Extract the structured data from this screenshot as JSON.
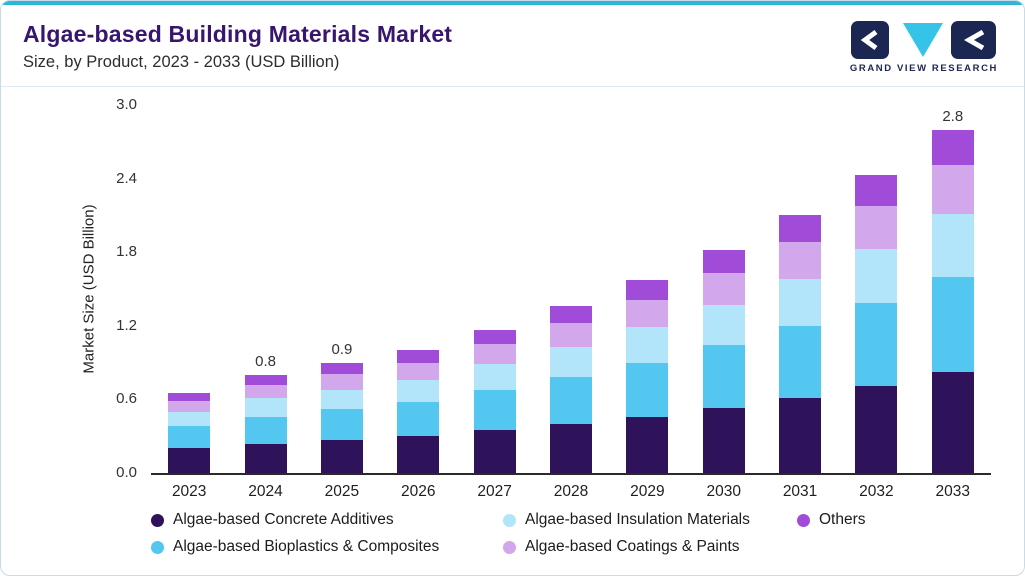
{
  "header": {
    "title": "Algae-based Building Materials Market",
    "subtitle": "Size, by Product, 2023 - 2033 (USD Billion)",
    "brand": "GRAND VIEW RESEARCH"
  },
  "colors": {
    "accent_teal": "#2cb6d9",
    "title_purple": "#38156e",
    "brand_navy": "#1b2653",
    "brand_cyan": "#35c4e8",
    "axis_text": "#333333",
    "baseline": "#2a2a2a"
  },
  "chart_data": {
    "type": "bar",
    "stacked": true,
    "title": "Algae-based Building Materials Market Size, by Product, 2023 - 2033 (USD Billion)",
    "xlabel": "",
    "ylabel": "Market Size (USD Billion)",
    "ylim": [
      0,
      3.0
    ],
    "ytick_labels": [
      "0.0",
      "0.6",
      "1.2",
      "1.8",
      "2.4",
      "3.0"
    ],
    "grid": false,
    "legend_position": "bottom",
    "categories": [
      "2023",
      "2024",
      "2025",
      "2026",
      "2027",
      "2028",
      "2029",
      "2030",
      "2031",
      "2032",
      "2033"
    ],
    "series": [
      {
        "name": "Algae-based Concrete Additives",
        "color": "#2e125a",
        "values": [
          0.2,
          0.24,
          0.27,
          0.3,
          0.35,
          0.4,
          0.46,
          0.53,
          0.61,
          0.71,
          0.82
        ]
      },
      {
        "name": "Algae-based Bioplastics & Composites",
        "color": "#54c7f0",
        "values": [
          0.18,
          0.22,
          0.25,
          0.28,
          0.33,
          0.38,
          0.44,
          0.51,
          0.59,
          0.68,
          0.78
        ]
      },
      {
        "name": "Algae-based Insulation Materials",
        "color": "#b3e5fa",
        "values": [
          0.12,
          0.15,
          0.16,
          0.18,
          0.21,
          0.25,
          0.29,
          0.33,
          0.38,
          0.44,
          0.51
        ]
      },
      {
        "name": "Algae-based Coatings & Paints",
        "color": "#d2a7eb",
        "values": [
          0.09,
          0.11,
          0.13,
          0.14,
          0.16,
          0.19,
          0.22,
          0.26,
          0.3,
          0.35,
          0.4
        ]
      },
      {
        "name": "Others",
        "color": "#a04cd9",
        "values": [
          0.06,
          0.08,
          0.09,
          0.1,
          0.12,
          0.14,
          0.16,
          0.19,
          0.22,
          0.25,
          0.29
        ]
      }
    ],
    "totals_labels": [
      "",
      "0.8",
      "0.9",
      "",
      "",
      "",
      "",
      "",
      "",
      "",
      "2.8"
    ],
    "legend_order": [
      0,
      2,
      4,
      1,
      3
    ]
  }
}
